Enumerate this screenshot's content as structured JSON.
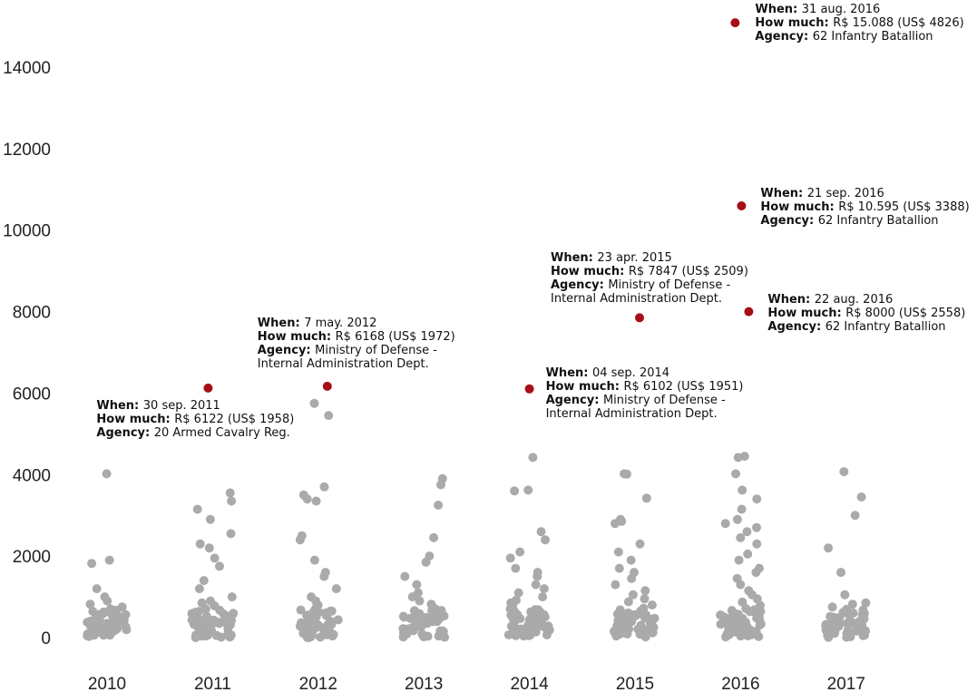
{
  "chart_data": {
    "type": "scatter",
    "title": "",
    "xlabel": "",
    "ylabel": "",
    "ylim": [
      0,
      15500
    ],
    "grid": false,
    "legend": "none",
    "x_categories": [
      "2010",
      "2011",
      "2012",
      "2013",
      "2014",
      "2015",
      "2016",
      "2017"
    ],
    "y_ticks": [
      0,
      2000,
      4000,
      6000,
      8000,
      10000,
      12000,
      14000
    ],
    "y_tick_labels": [
      "0",
      "2000",
      "4000",
      "6000",
      "8000",
      "10000",
      "12000",
      "14000"
    ],
    "colors": {
      "regular": "#aaaaaa",
      "highlight": "#a50f15"
    },
    "points": [
      {
        "year": "2010",
        "y": 4020
      },
      {
        "year": "2010",
        "y": 1900
      },
      {
        "year": "2010",
        "y": 1820
      },
      {
        "year": "2010",
        "y": 1200
      },
      {
        "year": "2010",
        "y": 1000
      },
      {
        "year": "2010",
        "y": 900
      },
      {
        "year": "2010",
        "y": 820
      },
      {
        "year": "2010",
        "y": 750
      },
      {
        "year": "2010",
        "y": 700
      },
      {
        "year": "2010",
        "y": 620
      },
      {
        "year": "2010",
        "y": 560
      },
      {
        "year": "2010",
        "y": 500
      },
      {
        "year": "2010",
        "y": 450
      },
      {
        "year": "2010",
        "y": 400
      },
      {
        "year": "2010",
        "y": 350
      },
      {
        "year": "2010",
        "y": 300
      },
      {
        "year": "2010",
        "y": 250
      },
      {
        "year": "2010",
        "y": 200
      },
      {
        "year": "2010",
        "y": 150
      },
      {
        "year": "2010",
        "y": 100
      },
      {
        "year": "2010",
        "y": 60
      },
      {
        "year": "2010",
        "y": 30
      },
      {
        "year": "2011",
        "y": 3550
      },
      {
        "year": "2011",
        "y": 3350
      },
      {
        "year": "2011",
        "y": 3150
      },
      {
        "year": "2011",
        "y": 2900
      },
      {
        "year": "2011",
        "y": 2550
      },
      {
        "year": "2011",
        "y": 2300
      },
      {
        "year": "2011",
        "y": 2200
      },
      {
        "year": "2011",
        "y": 1950
      },
      {
        "year": "2011",
        "y": 1750
      },
      {
        "year": "2011",
        "y": 1400
      },
      {
        "year": "2011",
        "y": 1200
      },
      {
        "year": "2011",
        "y": 1000
      },
      {
        "year": "2011",
        "y": 900
      },
      {
        "year": "2011",
        "y": 850
      },
      {
        "year": "2011",
        "y": 780
      },
      {
        "year": "2011",
        "y": 700
      },
      {
        "year": "2011",
        "y": 640
      },
      {
        "year": "2011",
        "y": 580
      },
      {
        "year": "2011",
        "y": 520
      },
      {
        "year": "2011",
        "y": 460
      },
      {
        "year": "2011",
        "y": 400
      },
      {
        "year": "2011",
        "y": 340
      },
      {
        "year": "2011",
        "y": 280
      },
      {
        "year": "2011",
        "y": 220
      },
      {
        "year": "2011",
        "y": 160
      },
      {
        "year": "2011",
        "y": 100
      },
      {
        "year": "2011",
        "y": 50
      },
      {
        "year": "2012",
        "y": 5750
      },
      {
        "year": "2012",
        "y": 5450
      },
      {
        "year": "2012",
        "y": 3700
      },
      {
        "year": "2012",
        "y": 3500
      },
      {
        "year": "2012",
        "y": 3400
      },
      {
        "year": "2012",
        "y": 3350
      },
      {
        "year": "2012",
        "y": 2500
      },
      {
        "year": "2012",
        "y": 2400
      },
      {
        "year": "2012",
        "y": 1900
      },
      {
        "year": "2012",
        "y": 1600
      },
      {
        "year": "2012",
        "y": 1500
      },
      {
        "year": "2012",
        "y": 1200
      },
      {
        "year": "2012",
        "y": 1000
      },
      {
        "year": "2012",
        "y": 900
      },
      {
        "year": "2012",
        "y": 800
      },
      {
        "year": "2012",
        "y": 720
      },
      {
        "year": "2012",
        "y": 650
      },
      {
        "year": "2012",
        "y": 580
      },
      {
        "year": "2012",
        "y": 500
      },
      {
        "year": "2012",
        "y": 430
      },
      {
        "year": "2012",
        "y": 360
      },
      {
        "year": "2012",
        "y": 290
      },
      {
        "year": "2012",
        "y": 220
      },
      {
        "year": "2012",
        "y": 150
      },
      {
        "year": "2012",
        "y": 90
      },
      {
        "year": "2012",
        "y": 40
      },
      {
        "year": "2013",
        "y": 3900
      },
      {
        "year": "2013",
        "y": 3750
      },
      {
        "year": "2013",
        "y": 3250
      },
      {
        "year": "2013",
        "y": 2450
      },
      {
        "year": "2013",
        "y": 2000
      },
      {
        "year": "2013",
        "y": 1850
      },
      {
        "year": "2013",
        "y": 1500
      },
      {
        "year": "2013",
        "y": 1300
      },
      {
        "year": "2013",
        "y": 1100
      },
      {
        "year": "2013",
        "y": 1000
      },
      {
        "year": "2013",
        "y": 900
      },
      {
        "year": "2013",
        "y": 820
      },
      {
        "year": "2013",
        "y": 740
      },
      {
        "year": "2013",
        "y": 660
      },
      {
        "year": "2013",
        "y": 580
      },
      {
        "year": "2013",
        "y": 500
      },
      {
        "year": "2013",
        "y": 420
      },
      {
        "year": "2013",
        "y": 350
      },
      {
        "year": "2013",
        "y": 280
      },
      {
        "year": "2013",
        "y": 210
      },
      {
        "year": "2013",
        "y": 150
      },
      {
        "year": "2013",
        "y": 90
      },
      {
        "year": "2013",
        "y": 40
      },
      {
        "year": "2014",
        "y": 4420
      },
      {
        "year": "2014",
        "y": 3620
      },
      {
        "year": "2014",
        "y": 3600
      },
      {
        "year": "2014",
        "y": 2600
      },
      {
        "year": "2014",
        "y": 2400
      },
      {
        "year": "2014",
        "y": 2100
      },
      {
        "year": "2014",
        "y": 1950
      },
      {
        "year": "2014",
        "y": 1700
      },
      {
        "year": "2014",
        "y": 1600
      },
      {
        "year": "2014",
        "y": 1500
      },
      {
        "year": "2014",
        "y": 1300
      },
      {
        "year": "2014",
        "y": 1200
      },
      {
        "year": "2014",
        "y": 1100
      },
      {
        "year": "2014",
        "y": 1000
      },
      {
        "year": "2014",
        "y": 920
      },
      {
        "year": "2014",
        "y": 850
      },
      {
        "year": "2014",
        "y": 780
      },
      {
        "year": "2014",
        "y": 700
      },
      {
        "year": "2014",
        "y": 630
      },
      {
        "year": "2014",
        "y": 560
      },
      {
        "year": "2014",
        "y": 490
      },
      {
        "year": "2014",
        "y": 420
      },
      {
        "year": "2014",
        "y": 350
      },
      {
        "year": "2014",
        "y": 280
      },
      {
        "year": "2014",
        "y": 210
      },
      {
        "year": "2014",
        "y": 150
      },
      {
        "year": "2014",
        "y": 90
      },
      {
        "year": "2014",
        "y": 40
      },
      {
        "year": "2015",
        "y": 4020
      },
      {
        "year": "2015",
        "y": 4010
      },
      {
        "year": "2015",
        "y": 3420
      },
      {
        "year": "2015",
        "y": 2900
      },
      {
        "year": "2015",
        "y": 2850
      },
      {
        "year": "2015",
        "y": 2800
      },
      {
        "year": "2015",
        "y": 2300
      },
      {
        "year": "2015",
        "y": 2100
      },
      {
        "year": "2015",
        "y": 1900
      },
      {
        "year": "2015",
        "y": 1700
      },
      {
        "year": "2015",
        "y": 1600
      },
      {
        "year": "2015",
        "y": 1450
      },
      {
        "year": "2015",
        "y": 1300
      },
      {
        "year": "2015",
        "y": 1150
      },
      {
        "year": "2015",
        "y": 1050
      },
      {
        "year": "2015",
        "y": 950
      },
      {
        "year": "2015",
        "y": 880
      },
      {
        "year": "2015",
        "y": 800
      },
      {
        "year": "2015",
        "y": 720
      },
      {
        "year": "2015",
        "y": 650
      },
      {
        "year": "2015",
        "y": 570
      },
      {
        "year": "2015",
        "y": 500
      },
      {
        "year": "2015",
        "y": 430
      },
      {
        "year": "2015",
        "y": 360
      },
      {
        "year": "2015",
        "y": 290
      },
      {
        "year": "2015",
        "y": 220
      },
      {
        "year": "2015",
        "y": 150
      },
      {
        "year": "2015",
        "y": 90
      },
      {
        "year": "2015",
        "y": 40
      },
      {
        "year": "2016",
        "y": 4450
      },
      {
        "year": "2016",
        "y": 4420
      },
      {
        "year": "2016",
        "y": 4020
      },
      {
        "year": "2016",
        "y": 3620
      },
      {
        "year": "2016",
        "y": 3400
      },
      {
        "year": "2016",
        "y": 3150
      },
      {
        "year": "2016",
        "y": 2900
      },
      {
        "year": "2016",
        "y": 2800
      },
      {
        "year": "2016",
        "y": 2700
      },
      {
        "year": "2016",
        "y": 2600
      },
      {
        "year": "2016",
        "y": 2450
      },
      {
        "year": "2016",
        "y": 2300
      },
      {
        "year": "2016",
        "y": 2050
      },
      {
        "year": "2016",
        "y": 1900
      },
      {
        "year": "2016",
        "y": 1700
      },
      {
        "year": "2016",
        "y": 1600
      },
      {
        "year": "2016",
        "y": 1450
      },
      {
        "year": "2016",
        "y": 1300
      },
      {
        "year": "2016",
        "y": 1150
      },
      {
        "year": "2016",
        "y": 1050
      },
      {
        "year": "2016",
        "y": 950
      },
      {
        "year": "2016",
        "y": 870
      },
      {
        "year": "2016",
        "y": 790
      },
      {
        "year": "2016",
        "y": 710
      },
      {
        "year": "2016",
        "y": 640
      },
      {
        "year": "2016",
        "y": 570
      },
      {
        "year": "2016",
        "y": 500
      },
      {
        "year": "2016",
        "y": 430
      },
      {
        "year": "2016",
        "y": 360
      },
      {
        "year": "2016",
        "y": 290
      },
      {
        "year": "2016",
        "y": 220
      },
      {
        "year": "2016",
        "y": 150
      },
      {
        "year": "2016",
        "y": 90
      },
      {
        "year": "2016",
        "y": 40
      },
      {
        "year": "2017",
        "y": 4070
      },
      {
        "year": "2017",
        "y": 3450
      },
      {
        "year": "2017",
        "y": 3000
      },
      {
        "year": "2017",
        "y": 2200
      },
      {
        "year": "2017",
        "y": 1600
      },
      {
        "year": "2017",
        "y": 1050
      },
      {
        "year": "2017",
        "y": 850
      },
      {
        "year": "2017",
        "y": 820
      },
      {
        "year": "2017",
        "y": 750
      },
      {
        "year": "2017",
        "y": 600
      },
      {
        "year": "2017",
        "y": 500
      },
      {
        "year": "2017",
        "y": 420
      },
      {
        "year": "2017",
        "y": 350
      },
      {
        "year": "2017",
        "y": 280
      },
      {
        "year": "2017",
        "y": 220
      },
      {
        "year": "2017",
        "y": 160
      },
      {
        "year": "2017",
        "y": 100
      },
      {
        "year": "2017",
        "y": 50
      }
    ],
    "highlights": [
      {
        "year": "2011",
        "y": 6122,
        "when": "30 sep. 2011",
        "how_much": "R$ 6122 (US$ 1958)",
        "agency_lines": [
          "20 Armed Cavalry Reg."
        ]
      },
      {
        "year": "2012",
        "y": 6168,
        "when": "7 may. 2012",
        "how_much": "R$ 6168 (US$ 1972)",
        "agency_lines": [
          "Ministry of Defense -",
          "Internal Administration Dept."
        ]
      },
      {
        "year": "2014",
        "y": 6102,
        "when": "04 sep. 2014",
        "how_much": "R$ 6102 (US$ 1951)",
        "agency_lines": [
          "Ministry of Defense -",
          "Internal Administration Dept."
        ]
      },
      {
        "year": "2015",
        "y": 7847,
        "when": "23 apr. 2015",
        "how_much": "R$ 7847 (US$ 2509)",
        "agency_lines": [
          "Ministry of Defense -",
          "Internal Administration Dept."
        ]
      },
      {
        "year": "2016",
        "y": 15088,
        "when": "31 aug. 2016",
        "how_much": "R$ 15.088 (US$ 4826)",
        "agency_lines": [
          "62 Infantry Batallion"
        ]
      },
      {
        "year": "2016",
        "y": 10595,
        "when": "21 sep. 2016",
        "how_much": "R$ 10.595 (US$ 3388)",
        "agency_lines": [
          "62 Infantry Batallion"
        ]
      },
      {
        "year": "2016",
        "y": 8000,
        "when": "22 aug. 2016",
        "how_much": "R$ 8000 (US$ 2558)",
        "agency_lines": [
          "62 Infantry Batallion"
        ]
      }
    ],
    "annotation_keys": {
      "when": "When:",
      "how_much": "How much:",
      "agency": "Agency:"
    }
  }
}
